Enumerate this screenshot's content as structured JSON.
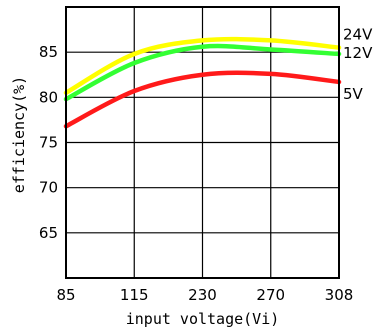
{
  "chart_data": {
    "type": "line",
    "title": "",
    "xlabel": "input voltage(Vi)",
    "ylabel": "efficiency(%)",
    "categories": [
      "85",
      "115",
      "230",
      "270",
      "308"
    ],
    "ylim": [
      60,
      90
    ],
    "yticks": [
      65,
      70,
      75,
      80,
      85
    ],
    "grid": true,
    "series": [
      {
        "name": "24V",
        "color": "#ffff00",
        "x": [
          "85",
          "115",
          "230",
          "270",
          "308"
        ],
        "values": [
          80.5,
          84.8,
          86.3,
          86.3,
          85.5
        ]
      },
      {
        "name": "12V",
        "color": "#33ff33",
        "x": [
          "85",
          "115",
          "230",
          "270",
          "308"
        ],
        "values": [
          79.8,
          83.8,
          85.6,
          85.3,
          84.8
        ]
      },
      {
        "name": "5V",
        "color": "#ff1a1a",
        "x": [
          "85",
          "115",
          "230",
          "270",
          "308"
        ],
        "values": [
          76.8,
          80.7,
          82.5,
          82.6,
          81.7
        ]
      }
    ]
  }
}
